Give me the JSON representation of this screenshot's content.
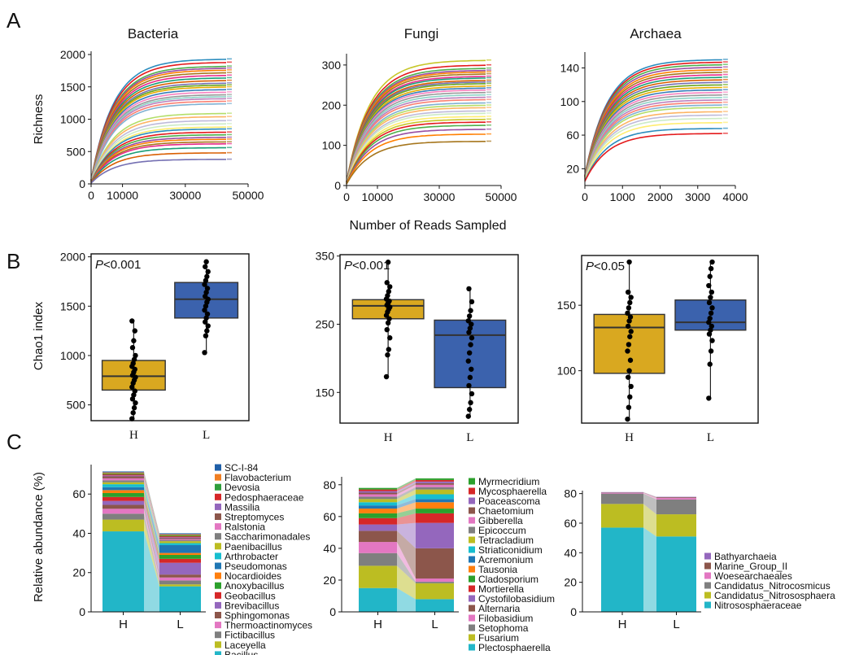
{
  "panel_labels": [
    "A",
    "B",
    "C"
  ],
  "a_shared_xlabel": "Number of Reads Sampled",
  "b_shared_ylabel": "Chao1 index",
  "c_shared_ylabel": "Relative abundance (%)",
  "chart_data": [
    {
      "id": "A1",
      "type": "line",
      "title": "Bacteria",
      "xlabel": "",
      "ylabel": "Richness",
      "xlim": [
        0,
        50000
      ],
      "ylim": [
        0,
        2000
      ],
      "xticks": [
        "0",
        "10000",
        "30000",
        "50000"
      ],
      "xtick_values": [
        0,
        10000,
        30000,
        50000
      ],
      "yticks": [
        "0",
        "500",
        "1000",
        "1500",
        "2000"
      ],
      "ytick_values": [
        0,
        500,
        1000,
        1500,
        2000
      ],
      "x_max": 43000,
      "plateaus": [
        1930,
        1880,
        1820,
        1790,
        1760,
        1720,
        1680,
        1640,
        1600,
        1560,
        1530,
        1500,
        1460,
        1420,
        1380,
        1350,
        1320,
        1280,
        1240,
        1090,
        1040,
        980,
        930,
        880,
        850,
        800,
        760,
        720,
        690,
        650,
        620,
        560,
        480,
        380
      ],
      "colors": [
        "#2b8cbe",
        "#e41a1c",
        "#4daf4a",
        "#984ea3",
        "#ff7f00",
        "#a6761d",
        "#e7298a",
        "#1b9e77",
        "#d95f02",
        "#7570b3",
        "#66a61e",
        "#e6ab02",
        "#377eb8",
        "#f781bf",
        "#999999",
        "#8dd3c7",
        "#bc80bd",
        "#fb8072",
        "#80b1d3",
        "#b3de69",
        "#fdb462",
        "#bebada",
        "#ccebc5",
        "#ffed6f"
      ]
    },
    {
      "id": "A2",
      "type": "line",
      "title": "Fungi",
      "xlabel": "",
      "ylabel": "",
      "xlim": [
        0,
        50000
      ],
      "ylim": [
        0,
        320
      ],
      "xticks": [
        "0",
        "10000",
        "30000",
        "50000"
      ],
      "xtick_values": [
        0,
        10000,
        30000,
        50000
      ],
      "yticks": [
        "0",
        "100",
        "200",
        "300"
      ],
      "ytick_values": [
        0,
        100,
        200,
        300
      ],
      "x_max": 45000,
      "plateaus": [
        312,
        300,
        292,
        287,
        283,
        278,
        272,
        268,
        262,
        258,
        254,
        248,
        243,
        238,
        232,
        226,
        220,
        214,
        206,
        200,
        194,
        186,
        180,
        172,
        165,
        158,
        150,
        140,
        128,
        110
      ],
      "colors": [
        "#c7c72a",
        "#e41a1c",
        "#4daf4a",
        "#984ea3",
        "#ff7f00",
        "#a6761d",
        "#e7298a",
        "#1b9e77",
        "#d95f02",
        "#7570b3",
        "#66a61e",
        "#e6ab02",
        "#377eb8",
        "#f781bf",
        "#999999",
        "#8dd3c7",
        "#bc80bd",
        "#fb8072",
        "#80b1d3",
        "#b3de69",
        "#fdb462",
        "#bebada",
        "#ccebc5",
        "#ffed6f"
      ]
    },
    {
      "id": "A3",
      "type": "line",
      "title": "Archaea",
      "xlabel": "",
      "ylabel": "",
      "xlim": [
        0,
        4000
      ],
      "ylim": [
        0,
        155
      ],
      "xticks": [
        "0",
        "1000",
        "2000",
        "3000",
        "4000"
      ],
      "xtick_values": [
        0,
        1000,
        2000,
        3000,
        4000
      ],
      "yticks": [
        "20",
        "60",
        "100",
        "140"
      ],
      "ytick_values": [
        20,
        60,
        100,
        140
      ],
      "x_max": 3650,
      "plateaus": [
        150,
        147,
        144,
        141,
        138,
        135,
        132,
        129,
        126,
        123,
        120,
        117,
        114,
        111,
        108,
        105,
        102,
        99,
        96,
        93,
        88,
        84,
        80,
        75,
        68,
        62
      ],
      "colors": [
        "#2b8cbe",
        "#e41a1c",
        "#4daf4a",
        "#984ea3",
        "#ff7f00",
        "#a6761d",
        "#e7298a",
        "#1b9e77",
        "#d95f02",
        "#7570b3",
        "#66a61e",
        "#e6ab02",
        "#377eb8",
        "#f781bf",
        "#999999",
        "#8dd3c7",
        "#bc80bd",
        "#fb8072",
        "#80b1d3",
        "#b3de69",
        "#fdb462",
        "#bebada",
        "#ccebc5",
        "#ffed6f"
      ]
    },
    {
      "id": "B1",
      "type": "box",
      "title": "",
      "annotation": "<0.001",
      "annotation_prefix": "P",
      "ylim": [
        340,
        2030
      ],
      "yticks": [
        "500",
        "1000",
        "1500",
        "2000"
      ],
      "ytick_values": [
        500,
        1000,
        1500,
        2000
      ],
      "categories": [
        "H",
        "L"
      ],
      "boxes": [
        {
          "group": "H",
          "min": 360,
          "q1": 650,
          "median": 790,
          "q3": 950,
          "max": 1350,
          "color": "#d9a820",
          "points": [
            360,
            420,
            470,
            520,
            560,
            600,
            640,
            680,
            720,
            750,
            780,
            800,
            830,
            860,
            890,
            920,
            960,
            1000,
            1080,
            1150,
            1250,
            1350
          ]
        },
        {
          "group": "L",
          "min": 1030,
          "q1": 1380,
          "median": 1570,
          "q3": 1740,
          "max": 1950,
          "color": "#3b62ad",
          "points": [
            1030,
            1200,
            1250,
            1300,
            1340,
            1380,
            1420,
            1460,
            1500,
            1540,
            1570,
            1600,
            1640,
            1680,
            1720,
            1760,
            1800,
            1850,
            1900,
            1950
          ]
        }
      ]
    },
    {
      "id": "B2",
      "type": "box",
      "title": "",
      "annotation": "<0.001",
      "annotation_prefix": "P",
      "ylim": [
        105,
        352
      ],
      "yticks": [
        "150",
        "250",
        "350"
      ],
      "ytick_values": [
        150,
        250,
        350
      ],
      "categories": [
        "H",
        "L"
      ],
      "boxes": [
        {
          "group": "H",
          "min": 173,
          "q1": 258,
          "median": 277,
          "q3": 286,
          "max": 341,
          "color": "#d9a820",
          "points": [
            173,
            205,
            213,
            230,
            242,
            252,
            258,
            263,
            268,
            272,
            275,
            278,
            281,
            284,
            287,
            292,
            298,
            305,
            311,
            341
          ]
        },
        {
          "group": "L",
          "min": 115,
          "q1": 157,
          "median": 234,
          "q3": 256,
          "max": 302,
          "color": "#3b62ad",
          "points": [
            115,
            125,
            135,
            148,
            160,
            172,
            184,
            196,
            208,
            220,
            230,
            238,
            244,
            250,
            255,
            262,
            270,
            283,
            302
          ]
        }
      ]
    },
    {
      "id": "B3",
      "type": "box",
      "title": "",
      "annotation": "<0.05",
      "annotation_prefix": "P",
      "ylim": [
        60,
        188
      ],
      "yticks": [
        "100",
        "150"
      ],
      "ytick_values": [
        100,
        150
      ],
      "categories": [
        "H",
        "L"
      ],
      "boxes": [
        {
          "group": "H",
          "min": 63,
          "q1": 98,
          "median": 133,
          "q3": 143,
          "max": 183,
          "color": "#d9a820",
          "points": [
            63,
            72,
            80,
            88,
            95,
            100,
            108,
            115,
            120,
            126,
            130,
            134,
            138,
            141,
            144,
            148,
            152,
            156,
            160,
            183
          ]
        },
        {
          "group": "L",
          "min": 79,
          "q1": 131,
          "median": 137,
          "q3": 154,
          "max": 183,
          "color": "#3b62ad",
          "points": [
            79,
            105,
            115,
            123,
            128,
            131,
            134,
            137,
            140,
            144,
            148,
            152,
            156,
            160,
            165,
            172,
            178,
            183
          ]
        }
      ]
    },
    {
      "id": "C1",
      "type": "stacked_bar",
      "ylim": [
        0,
        75
      ],
      "yticks": [
        "0",
        "20",
        "40",
        "60"
      ],
      "ytick_values": [
        0,
        20,
        40,
        60
      ],
      "categories": [
        "H",
        "L"
      ],
      "legend": [
        "SC-I-84",
        "Flavobacterium",
        "Devosia",
        "Pedosphaeraceae",
        "Massilia",
        "Streptomyces",
        "Ralstonia",
        "Saccharimonadales",
        "Paenibacillus",
        "Arthrobacter",
        "Pseudomonas",
        "Nocardioides",
        "Anoxybacillus",
        "Geobacillus",
        "Brevibacillus",
        "Sphingomonas",
        "Thermoactinomyces",
        "Fictibacillus",
        "Laceyella",
        "Bacillus"
      ],
      "colors": [
        "#1f5fa8",
        "#f07f23",
        "#2e9e3c",
        "#d62728",
        "#9467bd",
        "#8c564b",
        "#e377c2",
        "#7f7f7f",
        "#bcbd22",
        "#17becf",
        "#1f77b4",
        "#ff7f0e",
        "#2ca02c",
        "#d62728",
        "#9467bd",
        "#8c564b",
        "#e377c2",
        "#7f7f7f",
        "#bcbd22",
        "#22b6c8"
      ],
      "series": [
        {
          "group": "H",
          "values_bottom_up": [
            41,
            6,
            3,
            2.5,
            2,
            2,
            2,
            2,
            1.5,
            1.5,
            1.5,
            1,
            1,
            1,
            1,
            0.5,
            0.5,
            0.5,
            0.5,
            0.5
          ]
        },
        {
          "group": "L",
          "values_bottom_up": [
            13,
            1,
            2,
            1.5,
            1.5,
            6,
            2,
            2,
            1,
            4,
            1,
            1,
            0.5,
            0.5,
            0.5,
            0.5,
            0.5,
            0.5,
            0.5,
            0.5
          ]
        }
      ]
    },
    {
      "id": "C2",
      "type": "stacked_bar",
      "ylim": [
        0,
        85
      ],
      "yticks": [
        "0",
        "20",
        "40",
        "60",
        "80"
      ],
      "ytick_values": [
        0,
        20,
        40,
        60,
        80
      ],
      "categories": [
        "H",
        "L"
      ],
      "legend": [
        "Myrmecridium",
        "Mycosphaerella",
        "Poaceascoma",
        "Chaetomium",
        "Gibberella",
        "Epicoccum",
        "Tetracladium",
        "Striaticonidium",
        "Acremonium",
        "Tausonia",
        "Cladosporium",
        "Mortierella",
        "Cystofilobasidium",
        "Alternaria",
        "Filobasidium",
        "Setophoma",
        "Fusarium",
        "Plectosphaerella"
      ],
      "colors": [
        "#2ca02c",
        "#d62728",
        "#9467bd",
        "#8c564b",
        "#e377c2",
        "#7f7f7f",
        "#bcbd22",
        "#17becf",
        "#1f77b4",
        "#ff7f0e",
        "#2ca02c",
        "#d62728",
        "#9467bd",
        "#8c564b",
        "#e377c2",
        "#7f7f7f",
        "#bcbd22",
        "#22b6c8"
      ],
      "series": [
        {
          "group": "H",
          "values_bottom_up": [
            15,
            14,
            8,
            7,
            7,
            4,
            4,
            3,
            3,
            2,
            2,
            2,
            1.5,
            1.5,
            1,
            1,
            1,
            1
          ]
        },
        {
          "group": "L",
          "values_bottom_up": [
            8,
            10,
            1,
            2,
            19,
            16,
            6,
            3,
            4,
            2,
            3,
            3,
            1.5,
            1.5,
            1,
            1,
            1,
            1
          ]
        }
      ]
    },
    {
      "id": "C3",
      "type": "stacked_bar",
      "ylim": [
        0,
        82
      ],
      "yticks": [
        "0",
        "20",
        "40",
        "60",
        "80"
      ],
      "ytick_values": [
        0,
        20,
        40,
        60,
        80
      ],
      "categories": [
        "H",
        "L"
      ],
      "legend": [
        "Bathyarchaeia",
        "Marine_Group_II",
        "Woesearchaeales",
        "Candidatus_Nitrocosmicus",
        "Candidatus_Nitrososphaera",
        "Nitrososphaeraceae"
      ],
      "colors": [
        "#9467bd",
        "#8c564b",
        "#e377c2",
        "#7f7f7f",
        "#bcbd22",
        "#22b6c8"
      ],
      "series": [
        {
          "group": "H",
          "values_bottom_up": [
            57,
            16,
            7,
            0.5,
            0.3,
            0.2
          ]
        },
        {
          "group": "L",
          "values_bottom_up": [
            51,
            15,
            10,
            1,
            0.5,
            0.3
          ]
        }
      ]
    }
  ]
}
